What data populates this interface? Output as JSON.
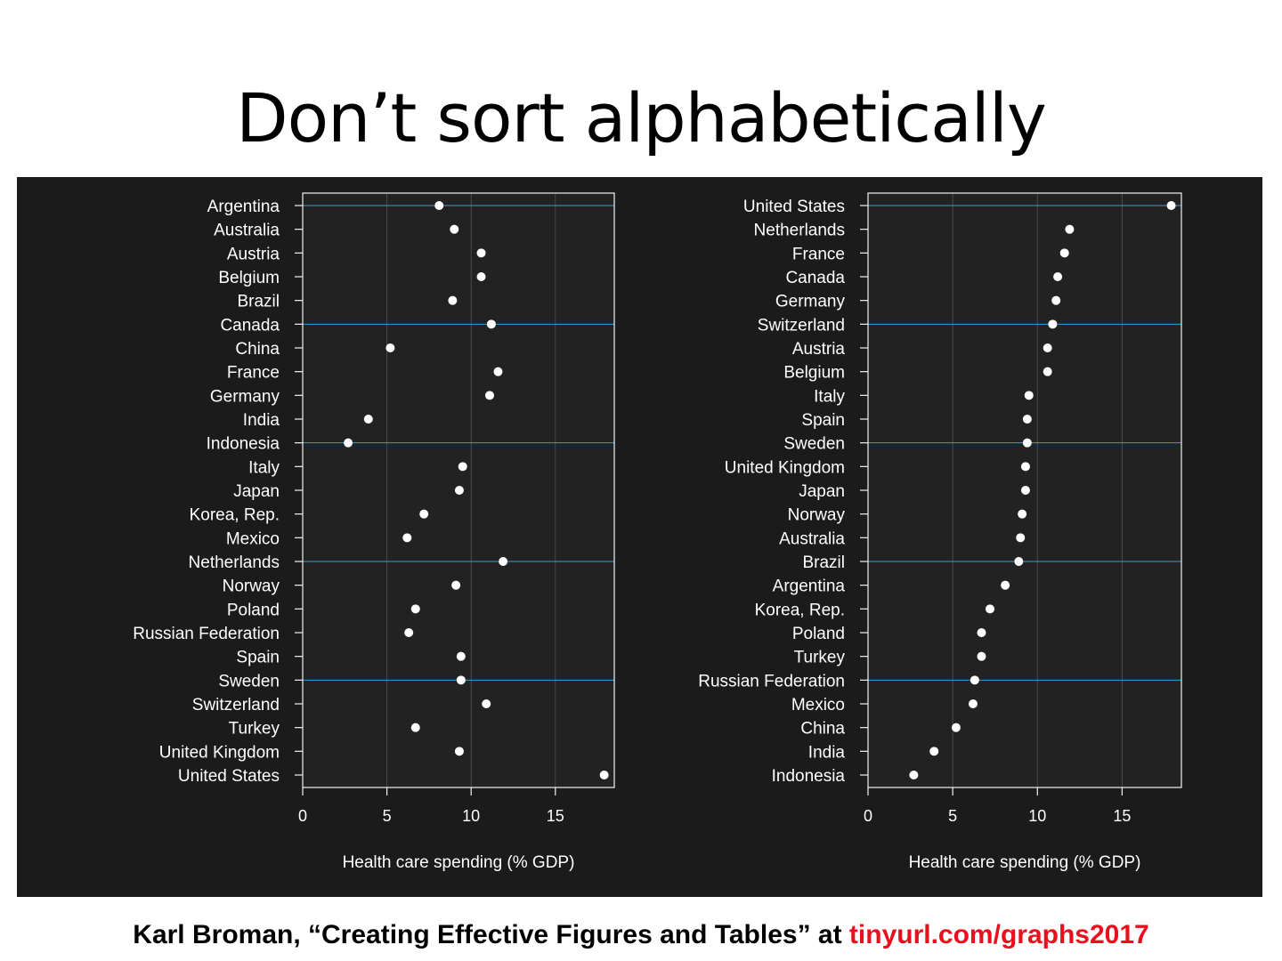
{
  "slide": {
    "title": "Don’t sort alphabetically",
    "footer_text": "Karl Broman, “Creating Effective Figures and Tables” at ",
    "footer_link": "tinyurl.com/graphs2017"
  },
  "colors": {
    "panel_background": "#1b1b1b",
    "plot_background": "#222222",
    "point": "#ffffff",
    "guide_line": "#2ea3d6",
    "grid_line": "#4a4a4a",
    "text": "#ffffff",
    "footer_link": "#e8101e"
  },
  "chart_data": [
    {
      "type": "scatter",
      "style": "dot plot",
      "title": "",
      "xlabel": "Health care spending (% GDP)",
      "ylabel": "",
      "xlim": [
        0,
        18.5
      ],
      "xticks": [
        0,
        5,
        10,
        15
      ],
      "grid": "vertical at 5, 10, 15",
      "guide_lines_every": 5,
      "categories": [
        "Argentina",
        "Australia",
        "Austria",
        "Belgium",
        "Brazil",
        "Canada",
        "China",
        "France",
        "Germany",
        "India",
        "Indonesia",
        "Italy",
        "Japan",
        "Korea, Rep.",
        "Mexico",
        "Netherlands",
        "Norway",
        "Poland",
        "Russian Federation",
        "Spain",
        "Sweden",
        "Switzerland",
        "Turkey",
        "United Kingdom",
        "United States"
      ],
      "values": [
        8.1,
        9.0,
        10.6,
        10.6,
        8.9,
        11.2,
        5.2,
        11.6,
        11.1,
        3.9,
        2.7,
        9.5,
        9.3,
        7.2,
        6.2,
        11.9,
        9.1,
        6.7,
        6.3,
        9.4,
        9.4,
        10.9,
        6.7,
        9.3,
        17.9
      ]
    },
    {
      "type": "scatter",
      "style": "dot plot",
      "title": "",
      "xlabel": "Health care spending (% GDP)",
      "ylabel": "",
      "xlim": [
        0,
        18.5
      ],
      "xticks": [
        0,
        5,
        10,
        15
      ],
      "grid": "vertical at 5, 10, 15",
      "guide_lines_every": 5,
      "categories": [
        "United States",
        "Netherlands",
        "France",
        "Canada",
        "Germany",
        "Switzerland",
        "Austria",
        "Belgium",
        "Italy",
        "Spain",
        "Sweden",
        "United Kingdom",
        "Japan",
        "Norway",
        "Australia",
        "Brazil",
        "Argentina",
        "Korea, Rep.",
        "Poland",
        "Turkey",
        "Russian Federation",
        "Mexico",
        "China",
        "India",
        "Indonesia"
      ],
      "values": [
        17.9,
        11.9,
        11.6,
        11.2,
        11.1,
        10.9,
        10.6,
        10.6,
        9.5,
        9.4,
        9.4,
        9.3,
        9.3,
        9.1,
        9.0,
        8.9,
        8.1,
        7.2,
        6.7,
        6.7,
        6.3,
        6.2,
        5.2,
        3.9,
        2.7
      ]
    }
  ]
}
